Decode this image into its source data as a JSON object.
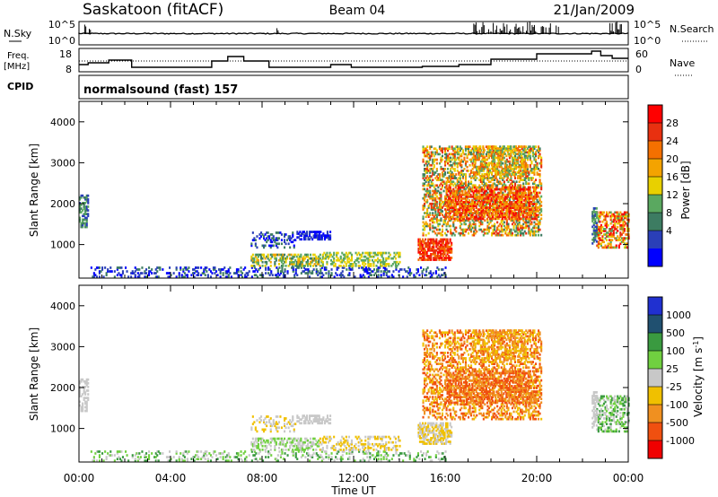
{
  "header": {
    "station": "Saskatoon (fitACF)",
    "beam": "Beam 04",
    "date": "21/Jan/2009"
  },
  "panels": {
    "nsky": {
      "label": "N.Sky",
      "tick_top": "10^5",
      "tick_bottom": "10^0",
      "right_label": "N.Search",
      "right_tick_top": "10^5",
      "right_tick_bottom": "10^0"
    },
    "freq": {
      "label_line1": "Freq.",
      "label_line2": "[MHz]",
      "tick_top": "18",
      "tick_bottom": "8",
      "right_label": "Nave",
      "right_tick_top": "60",
      "right_tick_bottom": "0"
    },
    "cpid": {
      "label": "CPID",
      "value": "normalsound (fast) 157"
    }
  },
  "colors": {
    "power": [
      "#0000ff",
      "#2a3fb8",
      "#3d7c62",
      "#5aa860",
      "#e8d000",
      "#f4a300",
      "#f47000",
      "#e83010",
      "#ff0000"
    ],
    "velocity": [
      "#2030d0",
      "#205070",
      "#3a9a40",
      "#70d040",
      "#c8c8c8",
      "#f0c000",
      "#f09020",
      "#f05010",
      "#f00000"
    ]
  },
  "chart_data": [
    {
      "type": "heatmap",
      "name": "power",
      "ylabel": "Slant Range [km]",
      "x_ticks": [
        "00:00",
        "04:00",
        "08:00",
        "12:00",
        "16:00",
        "20:00",
        "00:00"
      ],
      "y_ticks": [
        "1000",
        "2000",
        "3000",
        "4000"
      ],
      "ylim": [
        180,
        4500
      ],
      "colorbar_label": "Power [dB]",
      "colorbar_ticks": [
        "4",
        "8",
        "12",
        "16",
        "20",
        "24",
        "28"
      ],
      "grid": false
    },
    {
      "type": "heatmap",
      "name": "velocity",
      "xlabel": "Time UT",
      "ylabel": "Slant Range [km]",
      "x_ticks": [
        "00:00",
        "04:00",
        "08:00",
        "12:00",
        "16:00",
        "20:00",
        "00:00"
      ],
      "y_ticks": [
        "1000",
        "2000",
        "3000",
        "4000"
      ],
      "ylim": [
        180,
        4500
      ],
      "colorbar_label": "Velocity [m s^-1]",
      "colorbar_ticks": [
        "1000",
        "500",
        "100",
        "25",
        "-25",
        "-100",
        "-500",
        "-1000"
      ],
      "grid": false
    }
  ]
}
